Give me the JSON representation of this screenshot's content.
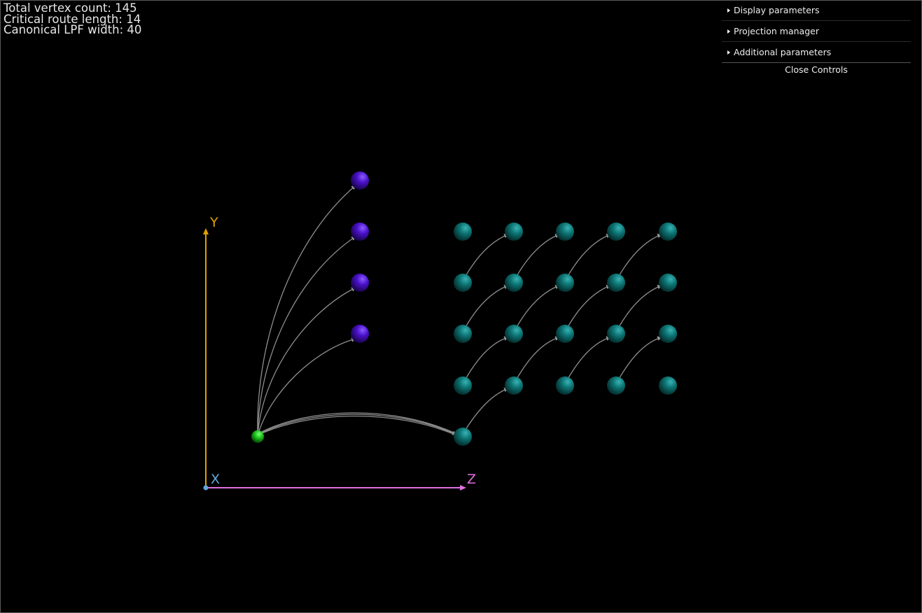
{
  "stats": {
    "vertex_count": "Total vertex count: 145",
    "critical_route": "Critical route length: 14",
    "lpf_width": "Canonical LPF width: 40"
  },
  "controls": {
    "folders": [
      {
        "label": "Display parameters"
      },
      {
        "label": "Projection manager"
      },
      {
        "label": "Additional parameters"
      }
    ],
    "close_label": "Close Controls"
  },
  "axes": {
    "x_label": "X",
    "y_label": "Y",
    "z_label": "Z",
    "colors": {
      "x": "#5fa8d8",
      "y": "#e0a000",
      "z": "#e070e0"
    }
  },
  "colors": {
    "source_node": "#19c419",
    "purple_node": "#4a10c8",
    "teal_node": "#0d8080",
    "edge": "#9a9a9a"
  },
  "icons": {
    "folder_toggle": "triangle-right-icon"
  }
}
